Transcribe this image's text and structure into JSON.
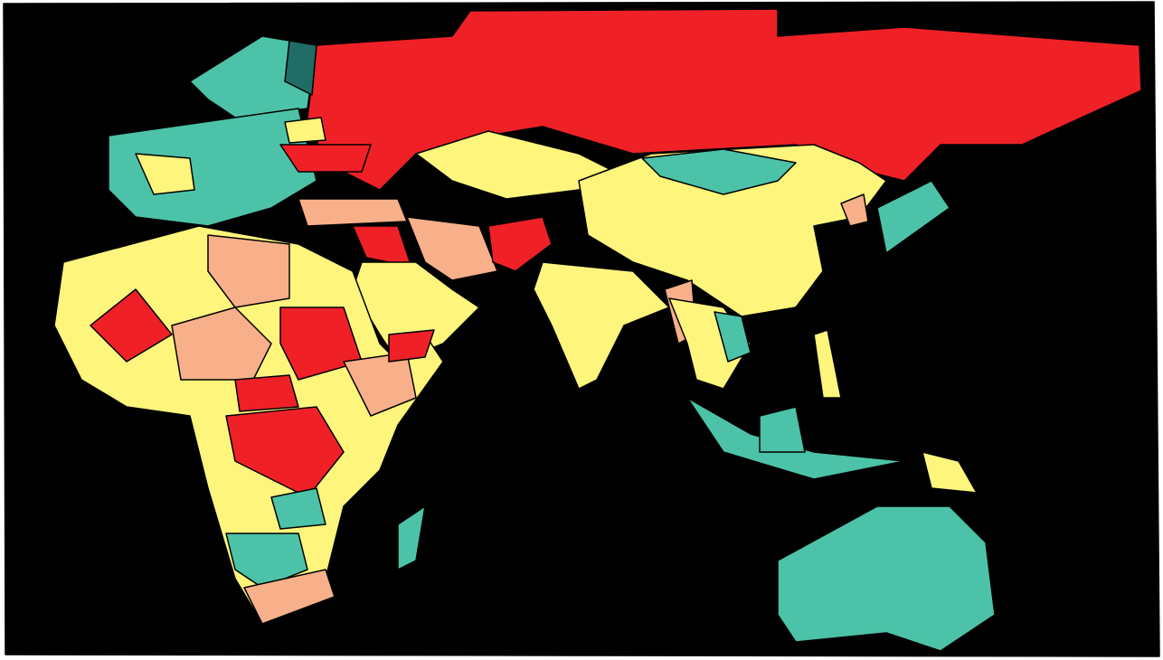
{
  "map": {
    "palette": [
      "#ef2127",
      "#fef57d",
      "#f7b08a",
      "#4cc3a8",
      "#1f6c66"
    ]
  }
}
